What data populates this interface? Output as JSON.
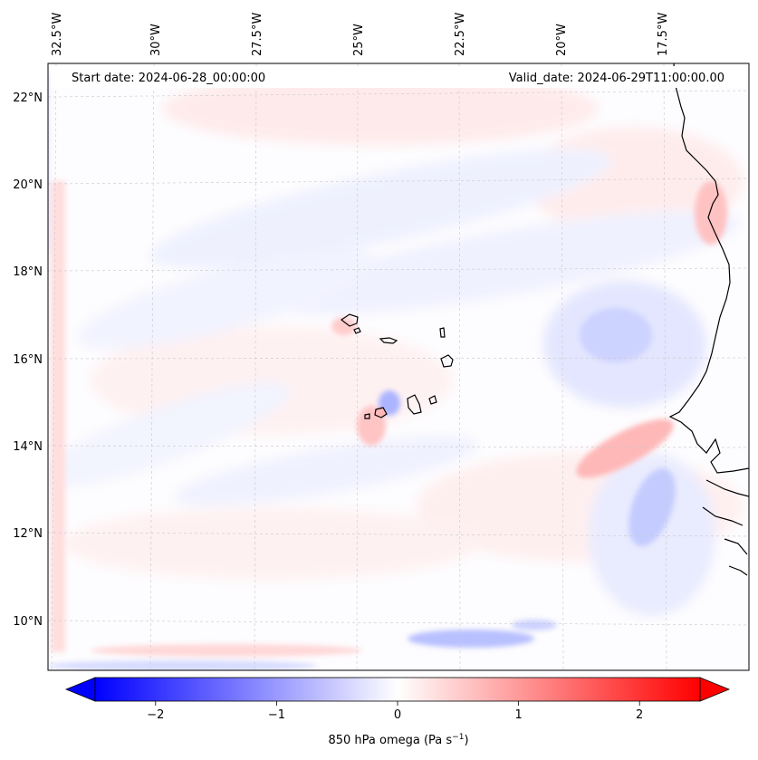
{
  "map": {
    "start_date": "Start date: 2024-06-28_00:00:00",
    "valid_date": "Valid_date: 2024-06-29T11:00:00.00",
    "lon_labels": [
      "32.5°W",
      "30°W",
      "27.5°W",
      "25°W",
      "22.5°W",
      "20°W",
      "17.5°W"
    ],
    "lat_labels": [
      "22°N",
      "20°N",
      "18°N",
      "16°N",
      "14°N",
      "12°N",
      "10°N"
    ],
    "extent": {
      "lon_min": -33.0,
      "lon_max": -15.0,
      "lat_min": 8.9,
      "lat_max": 22.8
    }
  },
  "colorbar": {
    "label": "850 hPa omega (Pa s",
    "label_sup": "−1",
    "label_end": ")",
    "ticks": [
      "−2",
      "−1",
      "0",
      "1",
      "2"
    ],
    "tick_values": [
      -2,
      -1,
      0,
      1,
      2
    ],
    "range": [
      -2.5,
      2.5
    ],
    "colormap": "bwr",
    "low_color": "#0000ff",
    "mid_color": "#ffffff",
    "high_color": "#ff0000"
  },
  "styles": {
    "coast_color": "#000000",
    "grid_color": "#c8c8c8"
  }
}
